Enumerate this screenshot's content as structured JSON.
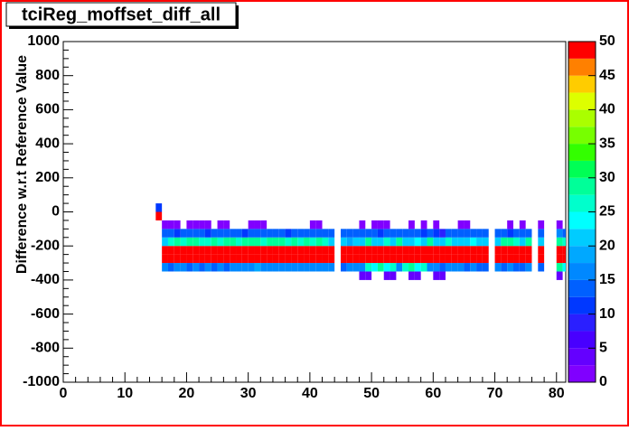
{
  "chart_data": {
    "type": "heatmap",
    "title": "tciReg_moffset_diff_all",
    "y_label": "Difference w.r.t Reference Value",
    "xlim": [
      0,
      81.5
    ],
    "xticks": [
      0,
      10,
      20,
      30,
      40,
      50,
      60,
      70,
      80
    ],
    "ylim": [
      -1000,
      1000
    ],
    "yticks": [
      -1000,
      -800,
      -600,
      -400,
      -200,
      0,
      200,
      400,
      600,
      800,
      1000
    ],
    "zlim": [
      0,
      50
    ],
    "zticks": [
      0,
      5,
      10,
      15,
      20,
      25,
      30,
      35,
      40,
      45,
      50
    ],
    "palette": [
      "#8000ff",
      "#6400ff",
      "#4800ff",
      "#2a1fff",
      "#0038ff",
      "#0060ff",
      "#0088ff",
      "#00a8ff",
      "#00ccff",
      "#00ffff",
      "#00ffcc",
      "#00ff99",
      "#00ff55",
      "#33ff00",
      "#77ff00",
      "#aaff00",
      "#ddff00",
      "#ffcc00",
      "#ff8000",
      "#ff0000"
    ],
    "xbins": [
      15,
      16,
      17,
      18,
      19,
      20,
      21,
      22,
      23,
      24,
      25,
      26,
      27,
      28,
      29,
      30,
      31,
      32,
      33,
      34,
      35,
      36,
      37,
      38,
      39,
      40,
      41,
      42,
      43,
      44,
      45,
      46,
      47,
      48,
      49,
      50,
      51,
      52,
      53,
      54,
      55,
      56,
      57,
      58,
      59,
      60,
      61,
      62,
      63,
      64,
      65,
      66,
      67,
      68,
      69,
      70,
      71,
      72,
      73,
      74,
      75,
      76,
      77,
      78,
      79,
      80,
      81,
      82
    ],
    "ybins": [
      -400,
      -350,
      -300,
      -250,
      -200,
      -150,
      -100,
      -50,
      0,
      50
    ],
    "z": [
      [
        null,
        null,
        null,
        null,
        null,
        null,
        null,
        null,
        null,
        null,
        null,
        null,
        null,
        null,
        null,
        null,
        null,
        null,
        null,
        null,
        null,
        null,
        null,
        null,
        null,
        null,
        null,
        null,
        null,
        null,
        null,
        null,
        null,
        3,
        3,
        null,
        null,
        3,
        3,
        null,
        null,
        3,
        3,
        null,
        null,
        3,
        3,
        null,
        null,
        null,
        null,
        null,
        null,
        null,
        null,
        null,
        null,
        null,
        null,
        null,
        null,
        null,
        null,
        null,
        null,
        3,
        null
      ],
      [
        null,
        16,
        13,
        16,
        17,
        13,
        16,
        13,
        16,
        13,
        16,
        13,
        16,
        16,
        17,
        17,
        18,
        17,
        17,
        16,
        17,
        17,
        17,
        16,
        17,
        16,
        17,
        16,
        17,
        null,
        13,
        17,
        15,
        16,
        26,
        24,
        28,
        24,
        26,
        17,
        26,
        28,
        24,
        26,
        16,
        17,
        13,
        17,
        16,
        17,
        13,
        16,
        13,
        13,
        null,
        16,
        13,
        16,
        13,
        13,
        16,
        null,
        13,
        null,
        null,
        28,
        24
      ],
      [
        null,
        50,
        50,
        50,
        50,
        50,
        50,
        50,
        50,
        50,
        50,
        50,
        50,
        50,
        50,
        50,
        50,
        50,
        50,
        50,
        50,
        50,
        50,
        50,
        50,
        50,
        50,
        50,
        50,
        null,
        50,
        50,
        50,
        50,
        50,
        50,
        50,
        50,
        50,
        50,
        50,
        50,
        50,
        50,
        50,
        50,
        50,
        50,
        50,
        50,
        50,
        50,
        50,
        50,
        null,
        50,
        50,
        50,
        50,
        50,
        50,
        null,
        50,
        null,
        null,
        50,
        50
      ],
      [
        null,
        50,
        50,
        50,
        50,
        50,
        50,
        50,
        50,
        50,
        50,
        50,
        50,
        50,
        50,
        50,
        50,
        50,
        50,
        50,
        50,
        50,
        50,
        50,
        50,
        50,
        50,
        50,
        50,
        null,
        50,
        50,
        50,
        50,
        50,
        50,
        50,
        50,
        50,
        50,
        50,
        50,
        50,
        50,
        50,
        50,
        50,
        50,
        50,
        50,
        50,
        50,
        50,
        50,
        null,
        50,
        50,
        50,
        50,
        50,
        50,
        null,
        50,
        null,
        null,
        50,
        50
      ],
      [
        null,
        22,
        26,
        28,
        27,
        28,
        28,
        26,
        27,
        28,
        27,
        28,
        28,
        26,
        28,
        28,
        28,
        27,
        28,
        28,
        28,
        27,
        28,
        26,
        28,
        25,
        28,
        26,
        20,
        null,
        20,
        19,
        22,
        20,
        28,
        22,
        20,
        26,
        20,
        28,
        22,
        20,
        24,
        22,
        28,
        20,
        22,
        26,
        22,
        20,
        22,
        24,
        20,
        20,
        null,
        22,
        28,
        28,
        26,
        20,
        28,
        null,
        20,
        null,
        null,
        28,
        26
      ],
      [
        null,
        13,
        13,
        12,
        13,
        14,
        13,
        13,
        12,
        13,
        13,
        14,
        13,
        13,
        12,
        13,
        13,
        14,
        13,
        13,
        13,
        12,
        13,
        13,
        14,
        13,
        13,
        13,
        13,
        null,
        13,
        13,
        14,
        13,
        13,
        13,
        12,
        13,
        13,
        14,
        13,
        13,
        13,
        12,
        13,
        10,
        9,
        13,
        13,
        13,
        14,
        13,
        13,
        13,
        null,
        13,
        13,
        12,
        13,
        13,
        13,
        null,
        13,
        null,
        null,
        17,
        14
      ],
      [
        null,
        2,
        2,
        2,
        null,
        2,
        2,
        2,
        2,
        null,
        2,
        2,
        null,
        null,
        null,
        2,
        2,
        2,
        null,
        null,
        null,
        null,
        null,
        null,
        null,
        2,
        2,
        null,
        null,
        null,
        null,
        null,
        null,
        2,
        null,
        2,
        2,
        2,
        null,
        null,
        null,
        2,
        null,
        2,
        null,
        2,
        null,
        null,
        null,
        2,
        2,
        null,
        null,
        null,
        null,
        null,
        null,
        2,
        null,
        2,
        null,
        null,
        2,
        null,
        null,
        2,
        null
      ],
      [
        48,
        null,
        null,
        null,
        null,
        null,
        null,
        null,
        null,
        null,
        null,
        null,
        null,
        null,
        null,
        null,
        null,
        null,
        null,
        null,
        null,
        null,
        null,
        null,
        null,
        null,
        null,
        null,
        null,
        null,
        null,
        null,
        null,
        null,
        null,
        null,
        null,
        null,
        null,
        null,
        null,
        null,
        null,
        null,
        null,
        null,
        null,
        null,
        null,
        null,
        null,
        null,
        null,
        null,
        null,
        null,
        null,
        null,
        null,
        null,
        null,
        null,
        null,
        null,
        null,
        null,
        null
      ],
      [
        12,
        null,
        null,
        null,
        null,
        null,
        null,
        null,
        null,
        null,
        null,
        null,
        null,
        null,
        null,
        null,
        null,
        null,
        null,
        null,
        null,
        null,
        null,
        null,
        null,
        null,
        null,
        null,
        null,
        null,
        null,
        null,
        null,
        null,
        null,
        null,
        null,
        null,
        null,
        null,
        null,
        null,
        null,
        null,
        null,
        null,
        null,
        null,
        null,
        null,
        null,
        null,
        null,
        null,
        null,
        null,
        null,
        null,
        null,
        null,
        null,
        null,
        null,
        null,
        null,
        null,
        null
      ]
    ]
  }
}
